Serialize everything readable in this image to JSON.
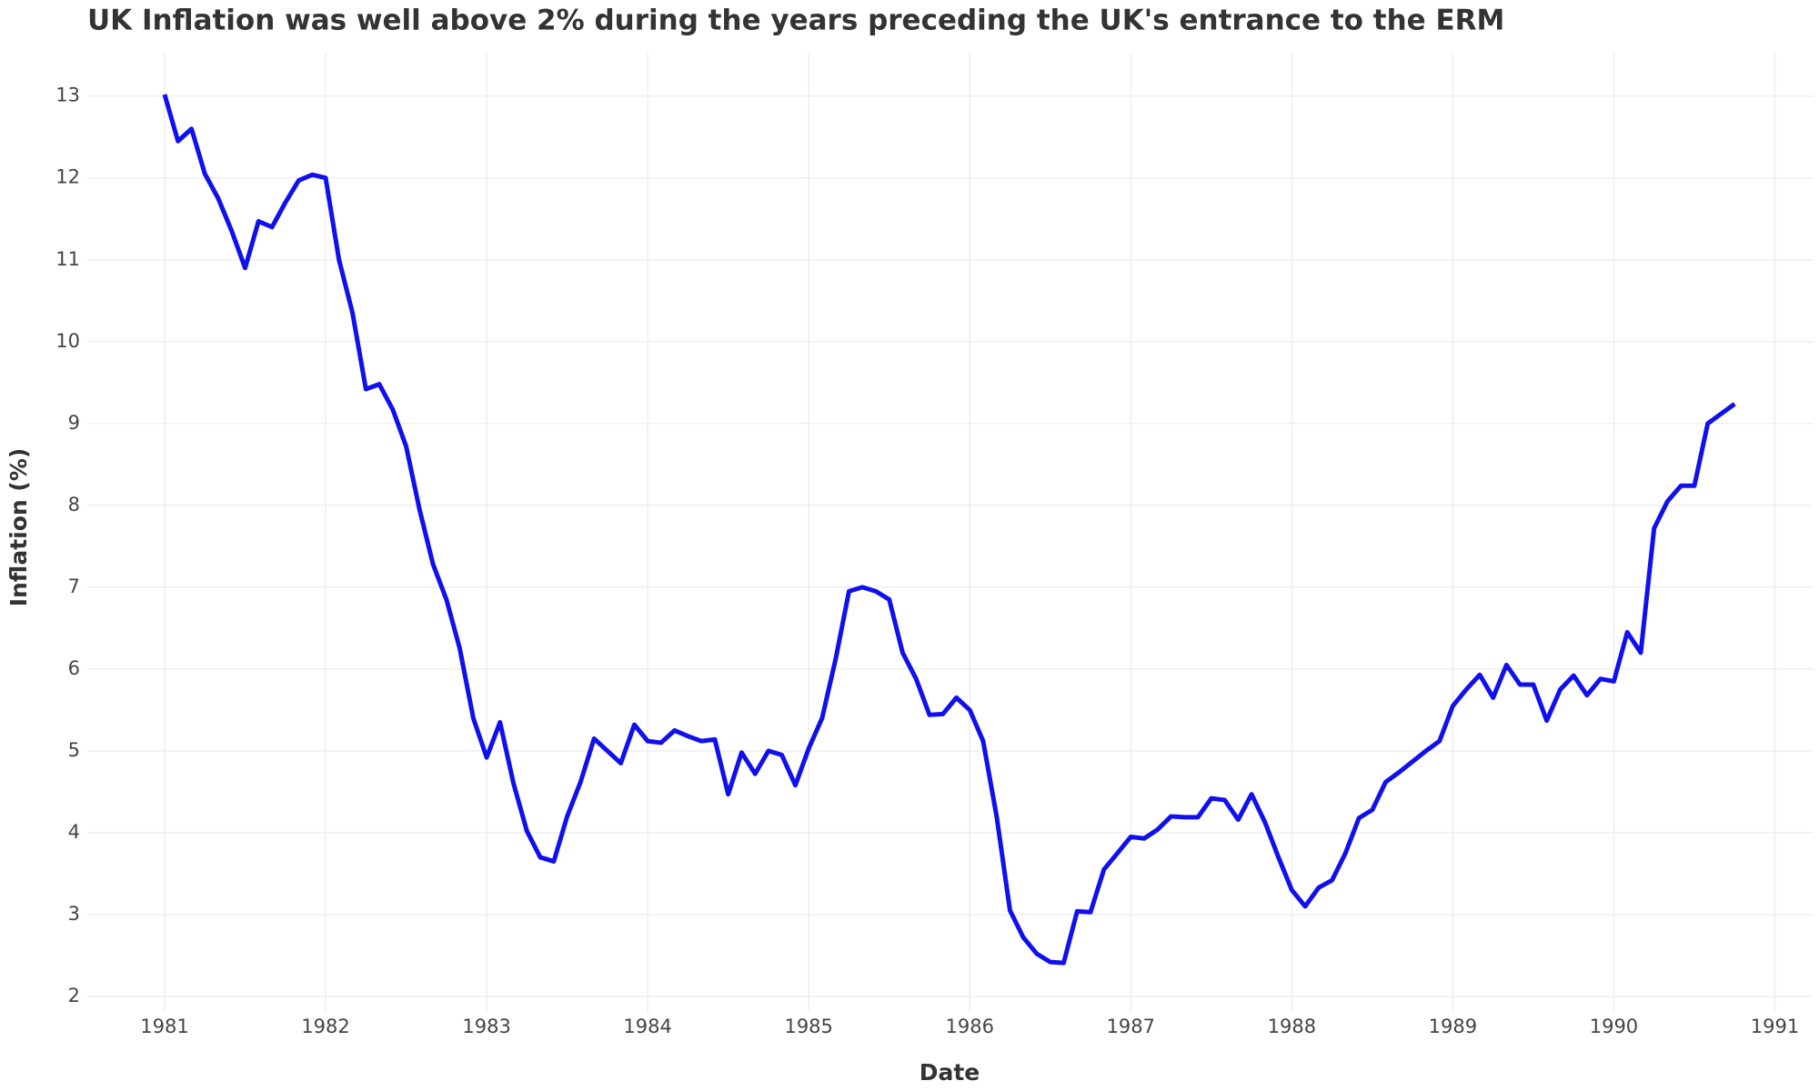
{
  "chart_data": {
    "type": "line",
    "title": "UK Inflation was well above 2% during the years preceding the UK's entrance to the ERM",
    "x_label": "Date",
    "y_label": "Inflation (%)",
    "x": [
      1981.0,
      1981.083,
      1981.167,
      1981.25,
      1981.333,
      1981.417,
      1981.5,
      1981.583,
      1981.667,
      1981.75,
      1981.833,
      1981.917,
      1982.0,
      1982.083,
      1982.167,
      1982.25,
      1982.333,
      1982.417,
      1982.5,
      1982.583,
      1982.667,
      1982.75,
      1982.833,
      1982.917,
      1983.0,
      1983.083,
      1983.167,
      1983.25,
      1983.333,
      1983.417,
      1983.5,
      1983.583,
      1983.667,
      1983.75,
      1983.833,
      1983.917,
      1984.0,
      1984.083,
      1984.167,
      1984.25,
      1984.333,
      1984.417,
      1984.5,
      1984.583,
      1984.667,
      1984.75,
      1984.833,
      1984.917,
      1985.0,
      1985.083,
      1985.167,
      1985.25,
      1985.333,
      1985.417,
      1985.5,
      1985.583,
      1985.667,
      1985.75,
      1985.833,
      1985.917,
      1986.0,
      1986.083,
      1986.167,
      1986.25,
      1986.333,
      1986.417,
      1986.5,
      1986.583,
      1986.667,
      1986.75,
      1986.833,
      1986.917,
      1987.0,
      1987.083,
      1987.167,
      1987.25,
      1987.333,
      1987.417,
      1987.5,
      1987.583,
      1987.667,
      1987.75,
      1987.833,
      1987.917,
      1988.0,
      1988.083,
      1988.167,
      1988.25,
      1988.333,
      1988.417,
      1988.5,
      1988.583,
      1988.667,
      1988.75,
      1988.833,
      1988.917,
      1989.0,
      1989.083,
      1989.167,
      1989.25,
      1989.333,
      1989.417,
      1989.5,
      1989.583,
      1989.667,
      1989.75,
      1989.833,
      1989.917,
      1990.0,
      1990.083,
      1990.167,
      1990.25,
      1990.333,
      1990.417,
      1990.5,
      1990.583,
      1990.667,
      1990.75
    ],
    "series": [
      {
        "name": "Inflation",
        "color": "#1010ee",
        "values": [
          13.02,
          12.45,
          12.6,
          12.05,
          11.75,
          11.35,
          10.9,
          11.47,
          11.4,
          11.7,
          11.97,
          12.04,
          12.0,
          11.0,
          10.35,
          9.42,
          9.48,
          9.17,
          8.72,
          7.95,
          7.28,
          6.85,
          6.25,
          5.4,
          4.92,
          5.35,
          4.6,
          4.02,
          3.7,
          3.65,
          4.2,
          4.62,
          5.15,
          5.0,
          4.85,
          5.32,
          5.12,
          5.1,
          5.25,
          5.18,
          5.12,
          5.14,
          4.47,
          4.98,
          4.72,
          5.0,
          4.95,
          4.58,
          5.03,
          5.4,
          6.12,
          6.95,
          7.0,
          6.95,
          6.85,
          6.2,
          5.88,
          5.44,
          5.45,
          5.65,
          5.5,
          5.12,
          4.2,
          3.05,
          2.72,
          2.52,
          2.42,
          2.41,
          3.04,
          3.03,
          3.55,
          3.75,
          3.95,
          3.93,
          4.04,
          4.2,
          4.19,
          4.19,
          4.42,
          4.4,
          4.16,
          4.47,
          4.13,
          3.7,
          3.3,
          3.1,
          3.33,
          3.42,
          3.75,
          4.18,
          4.28,
          4.62,
          4.74,
          4.87,
          5.0,
          5.12,
          5.55,
          5.75,
          5.93,
          5.65,
          6.05,
          5.81,
          5.81,
          5.37,
          5.75,
          5.92,
          5.68,
          5.88,
          5.85,
          6.45,
          6.2,
          7.72,
          8.05,
          8.24,
          8.24,
          9.0,
          9.12,
          9.24
        ]
      }
    ],
    "xlim": [
      1980.52,
      1991.24
    ],
    "ylim": [
      1.8,
      13.53
    ],
    "xticks": [
      1981,
      1982,
      1983,
      1984,
      1985,
      1986,
      1987,
      1988,
      1989,
      1990,
      1991
    ],
    "yticks": [
      2,
      3,
      4,
      5,
      6,
      7,
      8,
      9,
      10,
      11,
      12,
      13
    ],
    "grid": true
  }
}
